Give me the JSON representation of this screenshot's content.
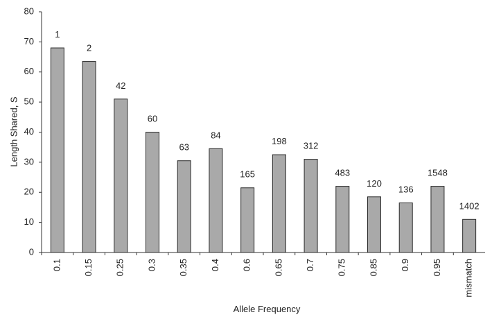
{
  "chart_data": {
    "type": "bar",
    "title": "",
    "xlabel": "Allele Frequency",
    "ylabel": "Length Shared, S",
    "ylim": [
      0,
      80
    ],
    "yticks": [
      0,
      10,
      20,
      30,
      40,
      50,
      60,
      70,
      80
    ],
    "grid": false,
    "legend": "none",
    "bar_color": "#a9a9a9",
    "categories": [
      "0.1",
      "0.15",
      "0.25",
      "0.3",
      "0.35",
      "0.4",
      "0.6",
      "0.65",
      "0.7",
      "0.75",
      "0.85",
      "0.9",
      "0.95",
      "mismatch"
    ],
    "values": [
      68,
      63.5,
      51,
      40,
      30.5,
      34.5,
      21.5,
      32.5,
      31,
      22,
      18.5,
      16.5,
      22,
      11
    ],
    "data_labels": [
      "1",
      "2",
      "42",
      "60",
      "63",
      "84",
      "165",
      "198",
      "312",
      "483",
      "120",
      "136",
      "1548",
      "1402"
    ]
  }
}
